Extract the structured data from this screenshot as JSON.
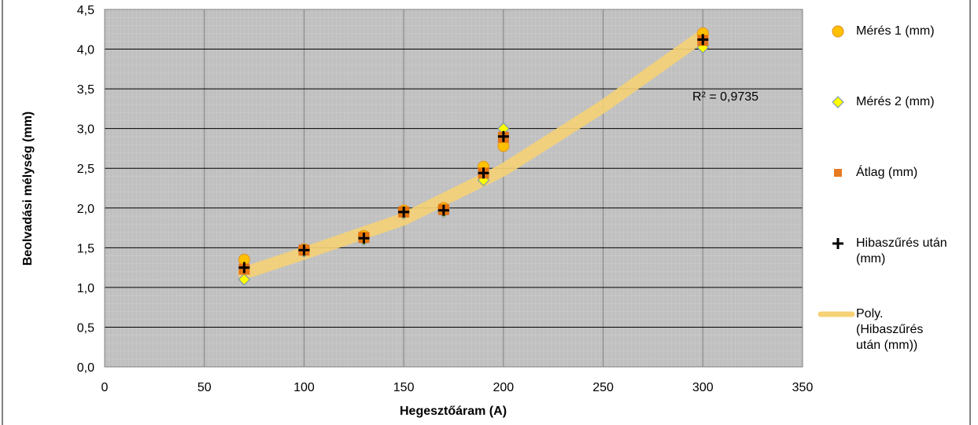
{
  "chart_data": {
    "type": "scatter",
    "x_label": "Hegesztőáram (A)",
    "y_label": "Beolvadási mélység (mm)",
    "annotation": "R² = 0,9735",
    "xlim": [
      0,
      350
    ],
    "xticks": [
      0,
      50,
      100,
      150,
      200,
      250,
      300,
      350
    ],
    "ylim": [
      0,
      4.5
    ],
    "yticks": [
      {
        "value": 0,
        "label": "0,0"
      },
      {
        "value": 0.5,
        "label": "0,5"
      },
      {
        "value": 1,
        "label": "1,0"
      },
      {
        "value": 1.5,
        "label": "1,5"
      },
      {
        "value": 2,
        "label": "2,0"
      },
      {
        "value": 2.5,
        "label": "2,5"
      },
      {
        "value": 3,
        "label": "3,0"
      },
      {
        "value": 3.5,
        "label": "3,5"
      },
      {
        "value": 4,
        "label": "4,0"
      },
      {
        "value": 4.5,
        "label": "4,5"
      }
    ],
    "grid": true,
    "series": [
      {
        "name": "Mérés 1 (mm)",
        "marker": "circle",
        "color": "#ffc000",
        "x": [
          70,
          100,
          130,
          150,
          170,
          190,
          200,
          300
        ],
        "values": [
          1.35,
          1.48,
          1.65,
          1.97,
          2.0,
          2.52,
          2.78,
          4.2
        ]
      },
      {
        "name": "Mérés 2 (mm)",
        "marker": "diamond",
        "color": "#ffff00",
        "x": [
          70,
          100,
          130,
          150,
          170,
          190,
          200,
          300
        ],
        "values": [
          1.1,
          1.45,
          1.6,
          1.93,
          1.95,
          2.35,
          3.0,
          4.02
        ]
      },
      {
        "name": "Átlag (mm)",
        "marker": "square",
        "color": "#e46c0a",
        "x": [
          70,
          100,
          130,
          150,
          170,
          190,
          200,
          300
        ],
        "values": [
          1.23,
          1.47,
          1.63,
          1.95,
          1.98,
          2.44,
          2.89,
          4.11
        ]
      },
      {
        "name": "Hibaszűrés után (mm)",
        "marker": "cross",
        "color": "#000000",
        "x": [
          70,
          100,
          130,
          150,
          170,
          190,
          200,
          300
        ],
        "values": [
          1.25,
          1.47,
          1.62,
          1.95,
          1.97,
          2.44,
          2.9,
          4.12
        ]
      },
      {
        "name": "Poly. (Hibaszűrés után (mm))",
        "marker": "trend",
        "color": "#f5d275",
        "x": [
          70,
          100,
          150,
          200,
          250,
          300
        ],
        "values": [
          1.18,
          1.43,
          1.86,
          2.48,
          3.28,
          4.17
        ]
      }
    ]
  }
}
